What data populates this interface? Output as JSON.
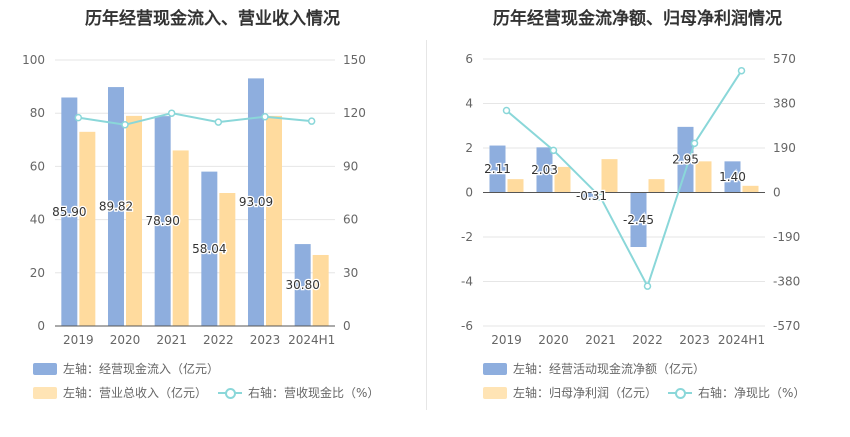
{
  "colors": {
    "bar1": "#8eaede",
    "bar2": "#ffdb9e",
    "line": "#8ad7d9",
    "axis_text": "#666666",
    "grid": "#e6e6e6",
    "label": "#333333"
  },
  "left": {
    "title": "历年经营现金流入、营业收入情况",
    "legend": {
      "bar1": "左轴：经营现金流入（亿元）",
      "bar2": "左轴：营业总收入（亿元）",
      "line": "右轴：营收现金比（%）"
    }
  },
  "right": {
    "title": "历年经营现金流净额、归母净利润情况",
    "legend": {
      "bar1": "左轴：经营活动现金流净额（亿元）",
      "bar2": "左轴：归母净利润（亿元）",
      "line": "右轴：净现比（%）"
    }
  },
  "chart_data": [
    {
      "type": "bar",
      "title": "历年经营现金流入、营业收入情况",
      "categories": [
        "2019",
        "2020",
        "2021",
        "2022",
        "2023",
        "2024H1"
      ],
      "series": [
        {
          "name": "左轴：经营现金流入（亿元）",
          "type": "bar",
          "axis": "left",
          "values": [
            85.9,
            89.82,
            78.9,
            58.04,
            93.09,
            30.8
          ],
          "labels": [
            "85.90",
            "89.82",
            "78.90",
            "58.04",
            "93.09",
            "30.80"
          ]
        },
        {
          "name": "左轴：营业总收入（亿元）",
          "type": "bar",
          "axis": "left",
          "values": [
            73,
            79,
            66,
            50,
            79,
            26.7
          ]
        },
        {
          "name": "右轴：营收现金比（%）",
          "type": "line",
          "axis": "right",
          "values": [
            117.5,
            113.5,
            120,
            115,
            118,
            115.5
          ]
        }
      ],
      "ylim_left": [
        0,
        100
      ],
      "ylim_right": [
        0,
        150
      ],
      "yticks_left": [
        "0",
        "20",
        "40",
        "60",
        "80",
        "100"
      ],
      "yticks_right": [
        "0",
        "30",
        "60",
        "90",
        "120",
        "150"
      ],
      "grid": true,
      "legend_position": "bottom"
    },
    {
      "type": "bar",
      "title": "历年经营现金流净额、归母净利润情况",
      "categories": [
        "2019",
        "2020",
        "2021",
        "2022",
        "2023",
        "2024H1"
      ],
      "series": [
        {
          "name": "左轴：经营活动现金流净额（亿元）",
          "type": "bar",
          "axis": "left",
          "values": [
            2.11,
            2.03,
            -0.31,
            -2.45,
            2.95,
            1.4
          ],
          "labels": [
            "2.11",
            "2.03",
            "-0.31",
            "-2.45",
            "2.95",
            "1.40"
          ]
        },
        {
          "name": "左轴：归母净利润（亿元）",
          "type": "bar",
          "axis": "left",
          "values": [
            0.6,
            1.15,
            1.5,
            0.6,
            1.4,
            0.3
          ]
        },
        {
          "name": "右轴：净现比（%）",
          "type": "line",
          "axis": "right",
          "values": [
            350,
            180,
            -20,
            -400,
            210,
            520
          ]
        }
      ],
      "ylim_left": [
        -6,
        6
      ],
      "ylim_right": [
        -570,
        570
      ],
      "yticks_left": [
        "-6",
        "-4",
        "-2",
        "0",
        "2",
        "4",
        "6"
      ],
      "yticks_right": [
        "-570",
        "-380",
        "-190",
        "0",
        "190",
        "380",
        "570"
      ],
      "grid": true,
      "legend_position": "bottom"
    }
  ]
}
